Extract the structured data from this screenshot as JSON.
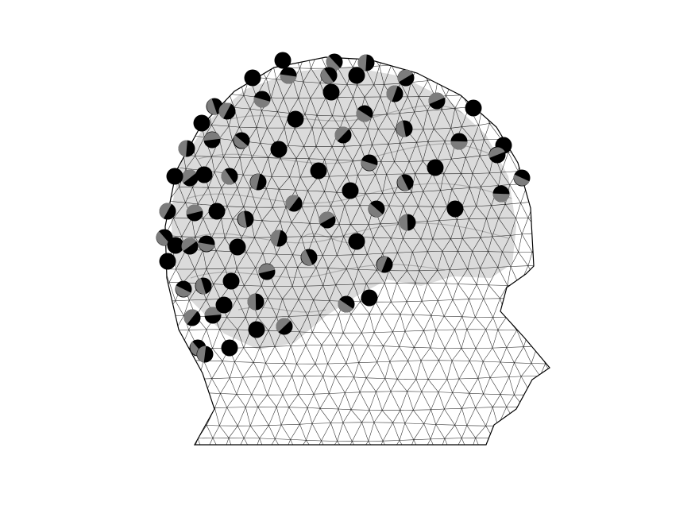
{
  "figure": {
    "title": "",
    "caption": "",
    "view": "left-lateral",
    "elements": [
      "scalp-surface-mesh",
      "brain-surface",
      "eeg-electrodes"
    ]
  },
  "style": {
    "background": "#ffffff",
    "mesh_color": "#000000",
    "brain_fill": "#bdbdbd",
    "electrode_color": "#000000",
    "electrode_shade": "#8a8a8a"
  },
  "electrodes": {
    "count": 116
  }
}
